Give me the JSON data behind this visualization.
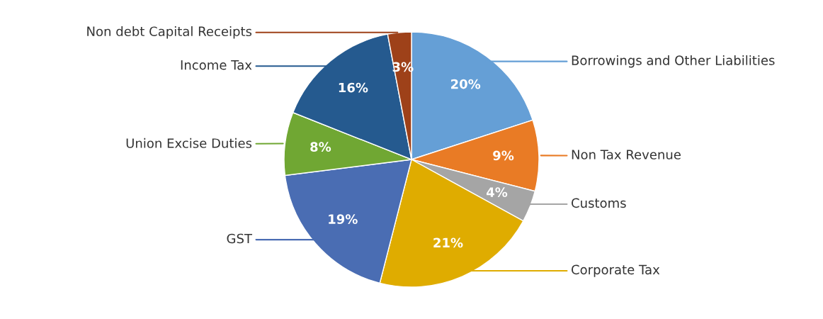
{
  "chart_data": {
    "type": "pie",
    "categories": [
      "Borrowings and Other Liabilities",
      "Non Tax Revenue",
      "Customs",
      "Corporate Tax",
      "GST",
      "Union Excise Duties",
      "Income Tax",
      "Non debt Capital Receipts"
    ],
    "values": [
      20,
      9,
      4,
      21,
      19,
      8,
      16,
      3
    ],
    "value_labels": [
      "20%",
      "9%",
      "4%",
      "21%",
      "19%",
      "8%",
      "16%",
      "3%"
    ],
    "colors": [
      "#659fd6",
      "#e97b25",
      "#a5a5a5",
      "#dfac00",
      "#4a6db3",
      "#70a733",
      "#255a8f",
      "#9e4119"
    ]
  }
}
